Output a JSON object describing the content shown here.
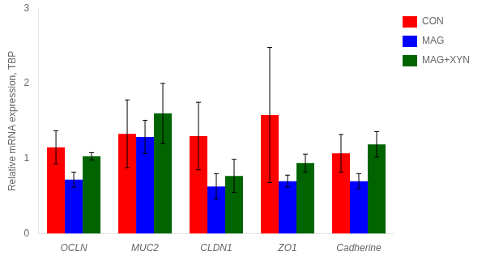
{
  "chart_data": {
    "type": "bar",
    "categories": [
      "OCLN",
      "MUC2",
      "CLDN1",
      "ZO1",
      "Cadherine"
    ],
    "series": [
      {
        "name": "CON",
        "color": "#FF0000",
        "values": [
          1.15,
          1.33,
          1.3,
          1.58,
          1.07
        ],
        "errors": [
          0.22,
          0.45,
          0.45,
          0.9,
          0.25
        ]
      },
      {
        "name": "MAG",
        "color": "#0000FF",
        "values": [
          0.72,
          1.29,
          0.63,
          0.7,
          0.7
        ],
        "errors": [
          0.1,
          0.22,
          0.17,
          0.08,
          0.1
        ]
      },
      {
        "name": "MAG+XYN",
        "color": "#006400",
        "values": [
          1.03,
          1.6,
          0.77,
          0.94,
          1.19
        ],
        "errors": [
          0.05,
          0.4,
          0.22,
          0.12,
          0.17
        ]
      }
    ],
    "ylabel": "Relative mRNA expression, TBP",
    "ylim": [
      0,
      3
    ],
    "yticks": [
      0,
      1,
      2,
      3
    ],
    "grid": false,
    "legend": "right"
  }
}
